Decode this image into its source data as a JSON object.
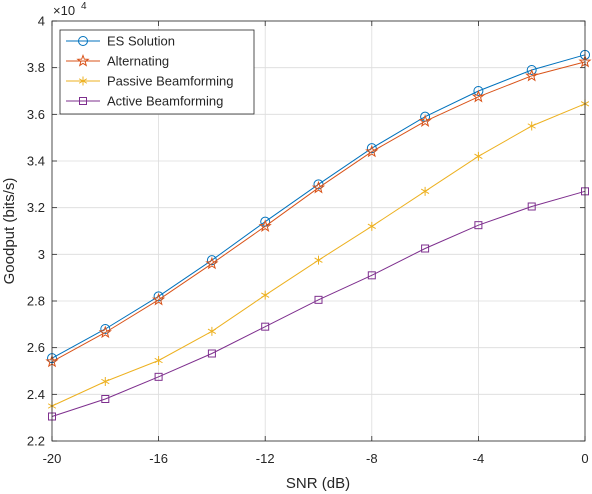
{
  "chart_data": {
    "type": "line",
    "xlabel": "SNR (dB)",
    "ylabel": "Goodput (bits/s)",
    "y_exponent_label": "×10",
    "y_exponent": "4",
    "x": [
      -20,
      -18,
      -16,
      -14,
      -12,
      -10,
      -8,
      -6,
      -4,
      -2,
      0
    ],
    "xlim": [
      -20,
      0
    ],
    "ylim": [
      2.2,
      4
    ],
    "y_scale_factor": 10000,
    "x_ticks": [
      -20,
      -16,
      -12,
      -8,
      -4,
      0
    ],
    "x_tick_labels": [
      "-20",
      "-16",
      "-12",
      "-8",
      "-4",
      "0"
    ],
    "y_ticks": [
      2.2,
      2.4,
      2.6,
      2.8,
      3,
      3.2,
      3.4,
      3.6,
      3.8,
      4
    ],
    "y_tick_labels": [
      "2.2",
      "2.4",
      "2.6",
      "2.8",
      "3",
      "3.2",
      "3.4",
      "3.6",
      "3.8",
      "4"
    ],
    "grid": true,
    "legend_position": "top-left",
    "series": [
      {
        "name": "ES Solution",
        "color": "#0072BD",
        "marker": "circle",
        "values": [
          2.555,
          2.68,
          2.82,
          2.975,
          3.14,
          3.3,
          3.455,
          3.59,
          3.7,
          3.79,
          3.855
        ]
      },
      {
        "name": "Alternating",
        "color": "#D95319",
        "marker": "pentagram",
        "values": [
          2.54,
          2.665,
          2.805,
          2.96,
          3.12,
          3.285,
          3.44,
          3.57,
          3.675,
          3.765,
          3.825
        ]
      },
      {
        "name": "Passive Beamforming",
        "color": "#EDB120",
        "marker": "asterisk",
        "values": [
          2.35,
          2.455,
          2.545,
          2.67,
          2.825,
          2.975,
          3.12,
          3.27,
          3.42,
          3.55,
          3.645
        ]
      },
      {
        "name": "Active Beamforming",
        "color": "#7E2F8E",
        "marker": "square",
        "values": [
          2.305,
          2.38,
          2.475,
          2.575,
          2.69,
          2.805,
          2.91,
          3.025,
          3.125,
          3.205,
          3.27
        ]
      }
    ]
  }
}
